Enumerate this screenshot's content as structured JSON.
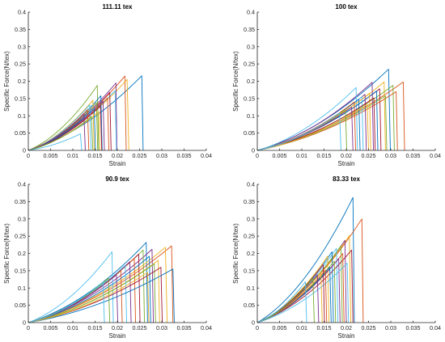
{
  "figure": {
    "palette": [
      "#0072BD",
      "#D95319",
      "#EDB120",
      "#7E2F8E",
      "#77AC30",
      "#4DBEEE",
      "#A2142F"
    ]
  },
  "chart_data": [
    {
      "type": "line",
      "title": "111.11 tex",
      "xlabel": "Strain",
      "ylabel": "Specific Force(N/tex)",
      "xlim": [
        0,
        0.04
      ],
      "ylim": [
        0,
        0.4
      ],
      "xticks": [
        "0",
        "0.005",
        "0.01",
        "0.015",
        "0.02",
        "0.025",
        "0.03",
        "0.035",
        "0.04"
      ],
      "yticks": [
        "0",
        "0.05",
        "0.1",
        "0.15",
        "0.2",
        "0.25",
        "0.3",
        "0.35",
        "0.4"
      ],
      "grid": false,
      "series": [
        {
          "peak_x": 0.0255,
          "peak_y": 0.216,
          "end_x": 0.0258
        },
        {
          "peak_x": 0.0217,
          "peak_y": 0.215,
          "end_x": 0.022
        },
        {
          "peak_x": 0.0222,
          "peak_y": 0.205,
          "end_x": 0.0226
        },
        {
          "peak_x": 0.0197,
          "peak_y": 0.195,
          "end_x": 0.0199
        },
        {
          "peak_x": 0.0155,
          "peak_y": 0.188,
          "end_x": 0.0158
        },
        {
          "peak_x": 0.0195,
          "peak_y": 0.173,
          "end_x": 0.0198
        },
        {
          "peak_x": 0.0183,
          "peak_y": 0.168,
          "end_x": 0.0186
        },
        {
          "peak_x": 0.0163,
          "peak_y": 0.158,
          "end_x": 0.0166
        },
        {
          "peak_x": 0.0178,
          "peak_y": 0.152,
          "end_x": 0.0181
        },
        {
          "peak_x": 0.0145,
          "peak_y": 0.145,
          "end_x": 0.0148
        },
        {
          "peak_x": 0.0168,
          "peak_y": 0.142,
          "end_x": 0.0171
        },
        {
          "peak_x": 0.0153,
          "peak_y": 0.138,
          "end_x": 0.0156
        },
        {
          "peak_x": 0.0138,
          "peak_y": 0.132,
          "end_x": 0.0141
        },
        {
          "peak_x": 0.0162,
          "peak_y": 0.128,
          "end_x": 0.0165
        },
        {
          "peak_x": 0.0148,
          "peak_y": 0.122,
          "end_x": 0.0151
        },
        {
          "peak_x": 0.0133,
          "peak_y": 0.118,
          "end_x": 0.0136
        },
        {
          "peak_x": 0.0158,
          "peak_y": 0.112,
          "end_x": 0.0161
        },
        {
          "peak_x": 0.0125,
          "peak_y": 0.105,
          "end_x": 0.0128
        },
        {
          "peak_x": 0.0142,
          "peak_y": 0.098,
          "end_x": 0.0145
        },
        {
          "peak_x": 0.0117,
          "peak_y": 0.048,
          "end_x": 0.012
        }
      ]
    },
    {
      "type": "line",
      "title": "100 tex",
      "xlabel": "Strain",
      "ylabel": "Specific Force(N/tex)",
      "xlim": [
        0,
        0.04
      ],
      "ylim": [
        0,
        0.4
      ],
      "xticks": [
        "0",
        "0.005",
        "0.01",
        "0.015",
        "0.02",
        "0.025",
        "0.03",
        "0.035",
        "0.04"
      ],
      "yticks": [
        "0",
        "0.05",
        "0.1",
        "0.15",
        "0.2",
        "0.25",
        "0.3",
        "0.35",
        "0.4"
      ],
      "grid": false,
      "series": [
        {
          "peak_x": 0.0295,
          "peak_y": 0.235,
          "end_x": 0.0299
        },
        {
          "peak_x": 0.0328,
          "peak_y": 0.198,
          "end_x": 0.0331
        },
        {
          "peak_x": 0.0285,
          "peak_y": 0.198,
          "end_x": 0.0288
        },
        {
          "peak_x": 0.0258,
          "peak_y": 0.197,
          "end_x": 0.0261
        },
        {
          "peak_x": 0.0305,
          "peak_y": 0.188,
          "end_x": 0.0308
        },
        {
          "peak_x": 0.0222,
          "peak_y": 0.182,
          "end_x": 0.0225
        },
        {
          "peak_x": 0.0275,
          "peak_y": 0.178,
          "end_x": 0.0278
        },
        {
          "peak_x": 0.0268,
          "peak_y": 0.172,
          "end_x": 0.0271
        },
        {
          "peak_x": 0.0312,
          "peak_y": 0.17,
          "end_x": 0.0315
        },
        {
          "peak_x": 0.0252,
          "peak_y": 0.165,
          "end_x": 0.0255
        },
        {
          "peak_x": 0.0242,
          "peak_y": 0.162,
          "end_x": 0.0245
        },
        {
          "peak_x": 0.0288,
          "peak_y": 0.158,
          "end_x": 0.0291
        },
        {
          "peak_x": 0.0235,
          "peak_y": 0.155,
          "end_x": 0.0238
        },
        {
          "peak_x": 0.0262,
          "peak_y": 0.152,
          "end_x": 0.0265
        },
        {
          "peak_x": 0.0228,
          "peak_y": 0.148,
          "end_x": 0.0231
        },
        {
          "peak_x": 0.0218,
          "peak_y": 0.14,
          "end_x": 0.0221
        },
        {
          "peak_x": 0.0247,
          "peak_y": 0.133,
          "end_x": 0.025
        },
        {
          "peak_x": 0.0212,
          "peak_y": 0.125,
          "end_x": 0.0215
        },
        {
          "peak_x": 0.0198,
          "peak_y": 0.118,
          "end_x": 0.0201
        },
        {
          "peak_x": 0.0185,
          "peak_y": 0.108,
          "end_x": 0.0188
        }
      ]
    },
    {
      "type": "line",
      "title": "90.9 tex",
      "xlabel": "Strain",
      "ylabel": "Specific Force(N/tex)",
      "xlim": [
        0,
        0.04
      ],
      "ylim": [
        0,
        0.4
      ],
      "xticks": [
        "0",
        "0.005",
        "0.01",
        "0.015",
        "0.02",
        "0.025",
        "0.03",
        "0.035",
        "0.04"
      ],
      "yticks": [
        "0",
        "0.05",
        "0.1",
        "0.15",
        "0.2",
        "0.25",
        "0.3",
        "0.35",
        "0.4"
      ],
      "grid": false,
      "series": [
        {
          "peak_x": 0.0265,
          "peak_y": 0.232,
          "end_x": 0.0268
        },
        {
          "peak_x": 0.0322,
          "peak_y": 0.222,
          "end_x": 0.0325
        },
        {
          "peak_x": 0.0308,
          "peak_y": 0.218,
          "end_x": 0.0312
        },
        {
          "peak_x": 0.0278,
          "peak_y": 0.212,
          "end_x": 0.0281
        },
        {
          "peak_x": 0.0258,
          "peak_y": 0.21,
          "end_x": 0.0261
        },
        {
          "peak_x": 0.0188,
          "peak_y": 0.205,
          "end_x": 0.0191
        },
        {
          "peak_x": 0.0248,
          "peak_y": 0.198,
          "end_x": 0.0251
        },
        {
          "peak_x": 0.0272,
          "peak_y": 0.192,
          "end_x": 0.0275
        },
        {
          "peak_x": 0.0238,
          "peak_y": 0.186,
          "end_x": 0.0241
        },
        {
          "peak_x": 0.0292,
          "peak_y": 0.18,
          "end_x": 0.0295
        },
        {
          "peak_x": 0.0228,
          "peak_y": 0.176,
          "end_x": 0.0231
        },
        {
          "peak_x": 0.0283,
          "peak_y": 0.17,
          "end_x": 0.0286
        },
        {
          "peak_x": 0.0218,
          "peak_y": 0.166,
          "end_x": 0.0221
        },
        {
          "peak_x": 0.0298,
          "peak_y": 0.16,
          "end_x": 0.0301
        },
        {
          "peak_x": 0.0325,
          "peak_y": 0.155,
          "end_x": 0.0328
        },
        {
          "peak_x": 0.0208,
          "peak_y": 0.15,
          "end_x": 0.0211
        },
        {
          "peak_x": 0.0268,
          "peak_y": 0.145,
          "end_x": 0.0271
        },
        {
          "peak_x": 0.0198,
          "peak_y": 0.138,
          "end_x": 0.0201
        },
        {
          "peak_x": 0.018,
          "peak_y": 0.128,
          "end_x": 0.0183
        },
        {
          "peak_x": 0.0168,
          "peak_y": 0.118,
          "end_x": 0.0171
        }
      ]
    },
    {
      "type": "line",
      "title": "83.33 tex",
      "xlabel": "Strain",
      "ylabel": "Specific Force(N/tex)",
      "xlim": [
        0,
        0.04
      ],
      "ylim": [
        0,
        0.4
      ],
      "xticks": [
        "0",
        "0.005",
        "0.01",
        "0.015",
        "0.02",
        "0.025",
        "0.03",
        "0.035",
        "0.04"
      ],
      "yticks": [
        "0",
        "0.05",
        "0.1",
        "0.15",
        "0.2",
        "0.25",
        "0.3",
        "0.35",
        "0.4"
      ],
      "grid": false,
      "series": [
        {
          "peak_x": 0.0215,
          "peak_y": 0.362,
          "end_x": 0.0218
        },
        {
          "peak_x": 0.0235,
          "peak_y": 0.3,
          "end_x": 0.0238
        },
        {
          "peak_x": 0.0207,
          "peak_y": 0.252,
          "end_x": 0.021
        },
        {
          "peak_x": 0.0197,
          "peak_y": 0.238,
          "end_x": 0.02
        },
        {
          "peak_x": 0.0188,
          "peak_y": 0.222,
          "end_x": 0.0191
        },
        {
          "peak_x": 0.0178,
          "peak_y": 0.215,
          "end_x": 0.0181
        },
        {
          "peak_x": 0.0212,
          "peak_y": 0.21,
          "end_x": 0.0215
        },
        {
          "peak_x": 0.0168,
          "peak_y": 0.205,
          "end_x": 0.0171
        },
        {
          "peak_x": 0.0192,
          "peak_y": 0.2,
          "end_x": 0.0195
        },
        {
          "peak_x": 0.0158,
          "peak_y": 0.192,
          "end_x": 0.0161
        },
        {
          "peak_x": 0.0183,
          "peak_y": 0.185,
          "end_x": 0.0186
        },
        {
          "peak_x": 0.0173,
          "peak_y": 0.178,
          "end_x": 0.0176
        },
        {
          "peak_x": 0.0202,
          "peak_y": 0.172,
          "end_x": 0.0205
        },
        {
          "peak_x": 0.0148,
          "peak_y": 0.168,
          "end_x": 0.0151
        },
        {
          "peak_x": 0.0163,
          "peak_y": 0.16,
          "end_x": 0.0166
        },
        {
          "peak_x": 0.0153,
          "peak_y": 0.152,
          "end_x": 0.0156
        },
        {
          "peak_x": 0.0143,
          "peak_y": 0.145,
          "end_x": 0.0146
        },
        {
          "peak_x": 0.0135,
          "peak_y": 0.138,
          "end_x": 0.0138
        },
        {
          "peak_x": 0.0125,
          "peak_y": 0.128,
          "end_x": 0.0128
        },
        {
          "peak_x": 0.0108,
          "peak_y": 0.118,
          "end_x": 0.0111
        }
      ]
    }
  ]
}
